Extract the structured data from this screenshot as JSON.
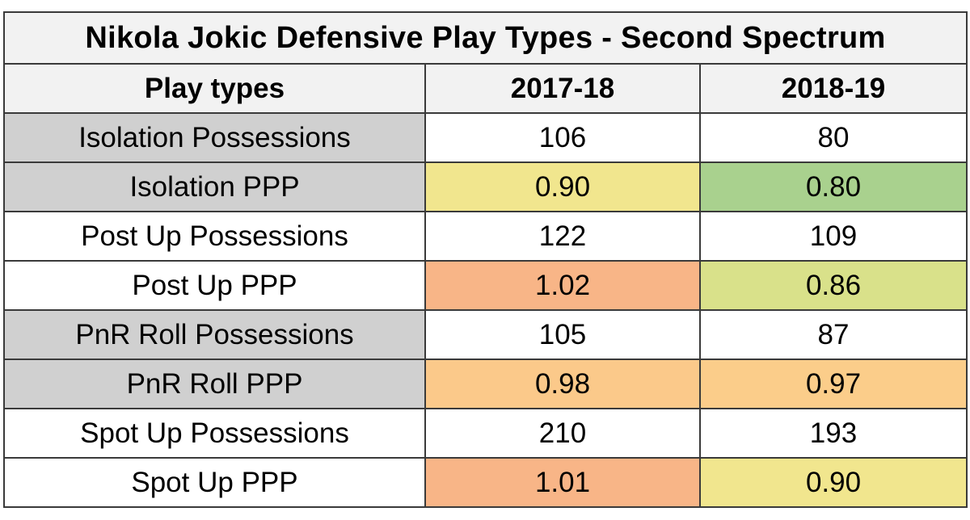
{
  "title": "Nikola Jokic Defensive Play Types - Second Spectrum",
  "columns": [
    "Play types",
    "2017-18",
    "2018-19"
  ],
  "rows": [
    {
      "label": "Isolation Possessions",
      "values": [
        "106",
        "80"
      ],
      "label_color": "#d0d0d0",
      "cell_colors": [
        "#ffffff",
        "#ffffff"
      ]
    },
    {
      "label": "Isolation PPP",
      "values": [
        "0.90",
        "0.80"
      ],
      "label_color": "#d0d0d0",
      "cell_colors": [
        "#f1e68e",
        "#a9d18e"
      ]
    },
    {
      "label": "Post Up Possessions",
      "values": [
        "122",
        "109"
      ],
      "label_color": "#ffffff",
      "cell_colors": [
        "#ffffff",
        "#ffffff"
      ]
    },
    {
      "label": "Post Up PPP",
      "values": [
        "1.02",
        "0.86"
      ],
      "label_color": "#ffffff",
      "cell_colors": [
        "#f8b587",
        "#d9e18a"
      ]
    },
    {
      "label": "PnR Roll Possessions",
      "values": [
        "105",
        "87"
      ],
      "label_color": "#d0d0d0",
      "cell_colors": [
        "#ffffff",
        "#ffffff"
      ]
    },
    {
      "label": "PnR Roll PPP",
      "values": [
        "0.98",
        "0.97"
      ],
      "label_color": "#d0d0d0",
      "cell_colors": [
        "#fbc98a",
        "#fbcd8a"
      ]
    },
    {
      "label": "Spot Up Possessions",
      "values": [
        "210",
        "193"
      ],
      "label_color": "#ffffff",
      "cell_colors": [
        "#ffffff",
        "#ffffff"
      ]
    },
    {
      "label": "Spot Up PPP",
      "values": [
        "1.01",
        "0.90"
      ],
      "label_color": "#ffffff",
      "cell_colors": [
        "#f8b587",
        "#f1e68e"
      ]
    }
  ]
}
